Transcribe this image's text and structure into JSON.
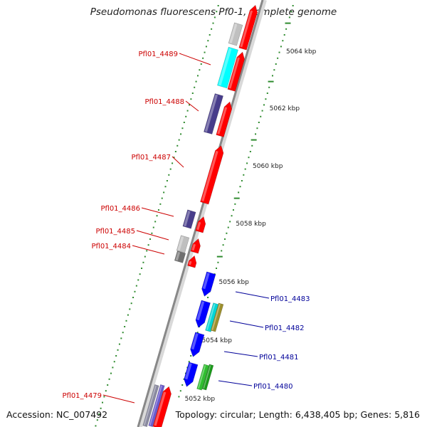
{
  "title": "Pseudomonas fluorescens Pf0-1, complete genome",
  "accession": "Accession: NC_007492",
  "summary": "Topology: circular; Length: 6,438,405 bp; Genes: 5,816",
  "colors": {
    "forward_gene": "#ff0000",
    "reverse_gene": "#0000ff",
    "backbone": "#888888",
    "tick": "#2e8b2e",
    "label_forward": "#cc0000",
    "label_reverse": "#000099"
  },
  "scale": {
    "unit": "kbp",
    "labels": [
      "5064 kbp",
      "5062 kbp",
      "5060 kbp",
      "5058 kbp",
      "5056 kbp",
      "5054 kbp",
      "5052 kbp"
    ]
  },
  "genes": [
    {
      "name": "Pfl01_4489",
      "strand": "forward"
    },
    {
      "name": "Pfl01_4488",
      "strand": "forward"
    },
    {
      "name": "Pfl01_4487",
      "strand": "forward"
    },
    {
      "name": "Pfl01_4486",
      "strand": "forward"
    },
    {
      "name": "Pfl01_4485",
      "strand": "forward"
    },
    {
      "name": "Pfl01_4484",
      "strand": "forward"
    },
    {
      "name": "Pfl01_4483",
      "strand": "reverse"
    },
    {
      "name": "Pfl01_4482",
      "strand": "reverse"
    },
    {
      "name": "Pfl01_4481",
      "strand": "reverse"
    },
    {
      "name": "Pfl01_4480",
      "strand": "reverse"
    },
    {
      "name": "Pfl01_4479",
      "strand": "forward"
    }
  ]
}
